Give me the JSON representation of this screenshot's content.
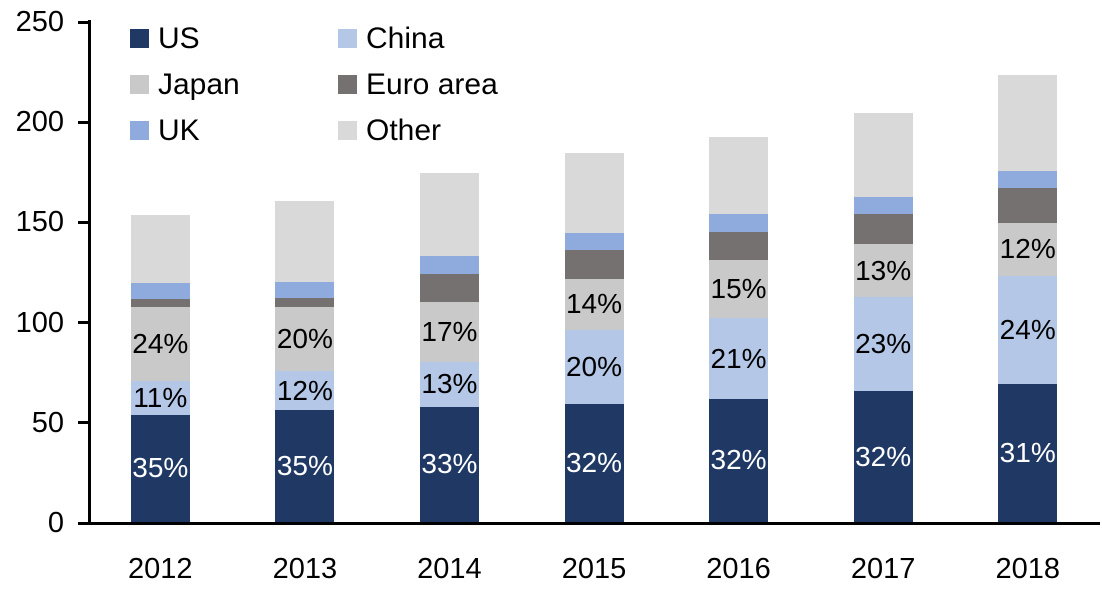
{
  "chart_data": {
    "type": "bar",
    "stacked": true,
    "title": "",
    "categories": [
      "2012",
      "2013",
      "2014",
      "2015",
      "2016",
      "2017",
      "2018"
    ],
    "y_axis": {
      "min": 0,
      "max": 250,
      "tick_step": 50,
      "tick_values": [
        0,
        50,
        100,
        150,
        200,
        250
      ],
      "tick_labels": [
        "0",
        "50",
        "100",
        "150",
        "200",
        "250"
      ]
    },
    "gridlines": false,
    "legend_position": "top-left",
    "legend_order_note": "two columns, row-major: US, China / Japan, Euro area / UK, Other",
    "totals": [
      153.1,
      160.0,
      174.0,
      184.1,
      191.9,
      204.0,
      223.0
    ],
    "series": [
      {
        "name": "US",
        "color": "#1f3864",
        "label_color": "#ffffff",
        "values": [
          53.6,
          56.0,
          57.4,
          58.9,
          61.4,
          65.3,
          69.1
        ],
        "percent_labels": [
          "35%",
          "35%",
          "33%",
          "32%",
          "32%",
          "32%",
          "31%"
        ]
      },
      {
        "name": "China",
        "color": "#b4c7e7",
        "label_color": "#000000",
        "values": [
          16.8,
          19.2,
          22.6,
          36.8,
          40.3,
          46.9,
          53.5
        ],
        "percent_labels": [
          "11%",
          "12%",
          "13%",
          "20%",
          "21%",
          "23%",
          "24%"
        ]
      },
      {
        "name": "Japan",
        "color": "#c9c9c9",
        "label_color": "#000000",
        "values": [
          36.7,
          32.0,
          29.6,
          25.8,
          28.8,
          26.5,
          26.8
        ],
        "percent_labels": [
          "24%",
          "20%",
          "17%",
          "14%",
          "15%",
          "13%",
          "12%"
        ]
      },
      {
        "name": "Euro area",
        "color": "#767171",
        "label_color": "#000000",
        "values": [
          4.0,
          4.6,
          14.3,
          14.4,
          14.2,
          14.9,
          17.2
        ],
        "percent_labels": null
      },
      {
        "name": "UK",
        "color": "#8faadc",
        "label_color": "#000000",
        "values": [
          8.0,
          8.2,
          9.0,
          8.5,
          9.0,
          8.8,
          8.7
        ],
        "percent_labels": null
      },
      {
        "name": "Other",
        "color": "#d9d9d9",
        "label_color": "#000000",
        "values": [
          34.0,
          40.0,
          41.1,
          39.7,
          38.2,
          41.6,
          47.7
        ],
        "percent_labels": null
      }
    ]
  },
  "colors": {
    "axis": "#000000",
    "background": "#ffffff",
    "text": "#000000"
  }
}
